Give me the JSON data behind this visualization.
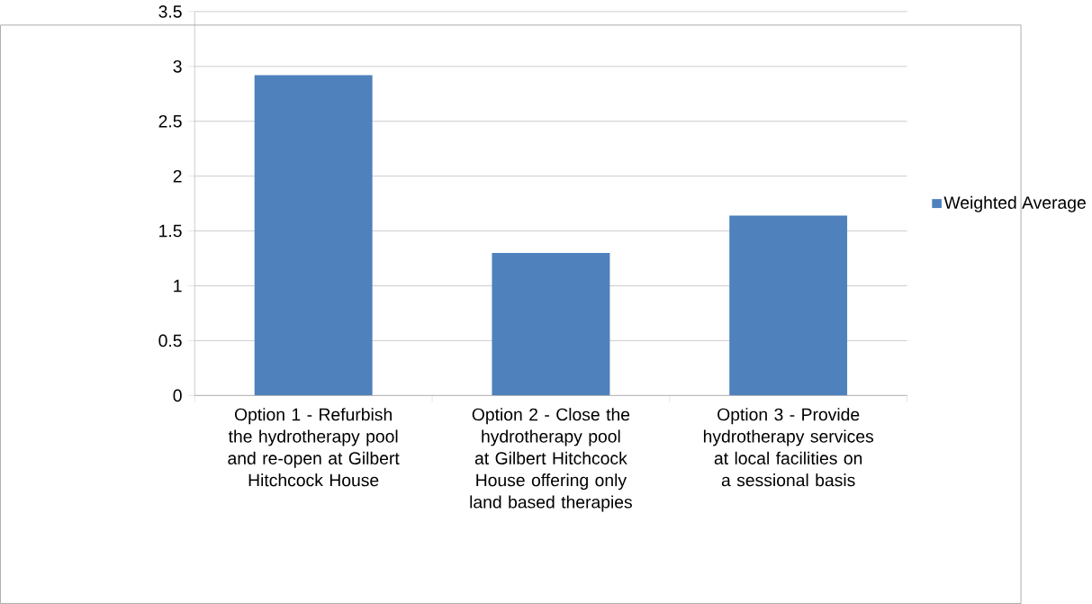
{
  "chart_data": {
    "type": "bar",
    "categories": [
      "Option 1 - Refurbish the hydrotherapy pool and re-open at Gilbert Hitchcock House",
      "Option 2 - Close the hydrotherapy pool at Gilbert Hitchcock House offering only land based therapies",
      "Option 3 - Provide hydrotherapy services at local facilities on a sessional basis"
    ],
    "series": [
      {
        "name": "Weighted Average",
        "color": "#4f81bd",
        "values": [
          2.92,
          1.3,
          1.64
        ]
      }
    ],
    "ylim": [
      0,
      3.5
    ],
    "yticks": [
      0,
      0.5,
      1,
      1.5,
      2,
      2.5,
      3,
      3.5
    ],
    "grid": "y",
    "legend": "right"
  }
}
